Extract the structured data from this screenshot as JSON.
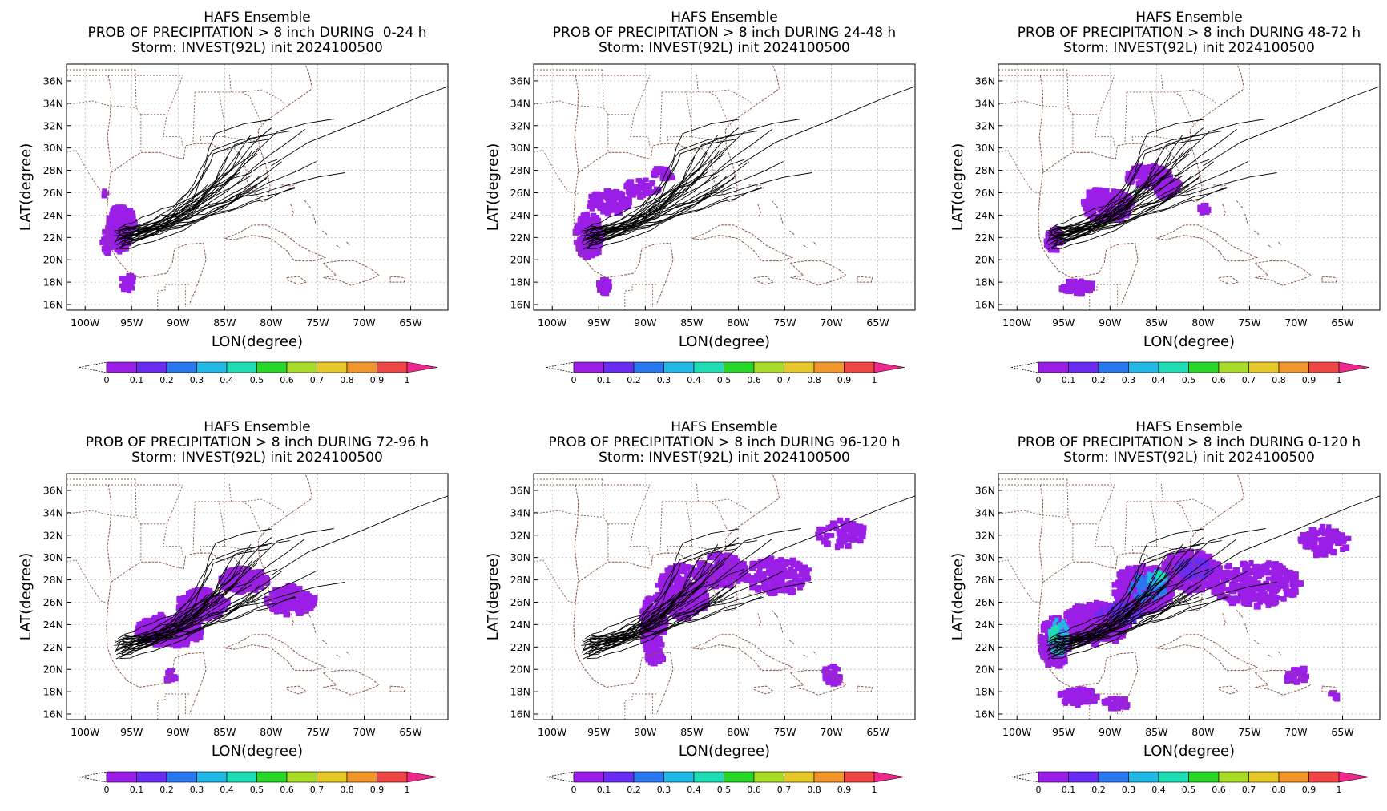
{
  "chart_data": {
    "type": "map",
    "panel_titles": {
      "line1": "HAFS Ensemble",
      "line3": "Storm: INVEST(92L) init 2024100500"
    },
    "xlabel": "LON(degree)",
    "ylabel": "LAT(degree)",
    "x_ticks": [
      {
        "value": -100,
        "label": "100W"
      },
      {
        "value": -95,
        "label": "95W"
      },
      {
        "value": -90,
        "label": "90W"
      },
      {
        "value": -85,
        "label": "85W"
      },
      {
        "value": -80,
        "label": "80W"
      },
      {
        "value": -75,
        "label": "75W"
      },
      {
        "value": -70,
        "label": "70W"
      },
      {
        "value": -65,
        "label": "65W"
      }
    ],
    "y_ticks": [
      {
        "value": 16,
        "label": "16N"
      },
      {
        "value": 18,
        "label": "18N"
      },
      {
        "value": 20,
        "label": "20N"
      },
      {
        "value": 22,
        "label": "22N"
      },
      {
        "value": 24,
        "label": "24N"
      },
      {
        "value": 26,
        "label": "26N"
      },
      {
        "value": 28,
        "label": "28N"
      },
      {
        "value": 30,
        "label": "30N"
      },
      {
        "value": 32,
        "label": "32N"
      },
      {
        "value": 34,
        "label": "34N"
      },
      {
        "value": 36,
        "label": "36N"
      }
    ],
    "xlim": [
      -102,
      -61
    ],
    "ylim": [
      15.5,
      37.5
    ],
    "grid": true,
    "colorbar": {
      "ticks": [
        "0",
        "0.1",
        "0.2",
        "0.3",
        "0.4",
        "0.5",
        "0.6",
        "0.7",
        "0.8",
        "0.9",
        "1"
      ],
      "colors": [
        "#9a1ee6",
        "#6a2cf0",
        "#2a78f0",
        "#22b8e6",
        "#1edcb4",
        "#28d828",
        "#a8dc28",
        "#e6c828",
        "#f0962a",
        "#f04646"
      ],
      "over_color": "#f0288c"
    },
    "panels": [
      {
        "title_line2": "PROB OF PRECIPITATION > 8 inch DURING  0-24 h",
        "period": "0-24 h",
        "max_probability": 0.2
      },
      {
        "title_line2": "PROB OF PRECIPITATION > 8 inch DURING 24-48 h",
        "period": "24-48 h",
        "max_probability": 0.1
      },
      {
        "title_line2": "PROB OF PRECIPITATION > 8 inch DURING 48-72 h",
        "period": "48-72 h",
        "max_probability": 0.2
      },
      {
        "title_line2": "PROB OF PRECIPITATION > 8 inch DURING 72-96 h",
        "period": "72-96 h",
        "max_probability": 0.1
      },
      {
        "title_line2": "PROB OF PRECIPITATION > 8 inch DURING 96-120 h",
        "period": "96-120 h",
        "max_probability": 0.1
      },
      {
        "title_line2": "PROB OF PRECIPITATION > 8 inch DURING 0-120 h",
        "period": "0-120 h",
        "max_probability": 0.4
      }
    ]
  }
}
